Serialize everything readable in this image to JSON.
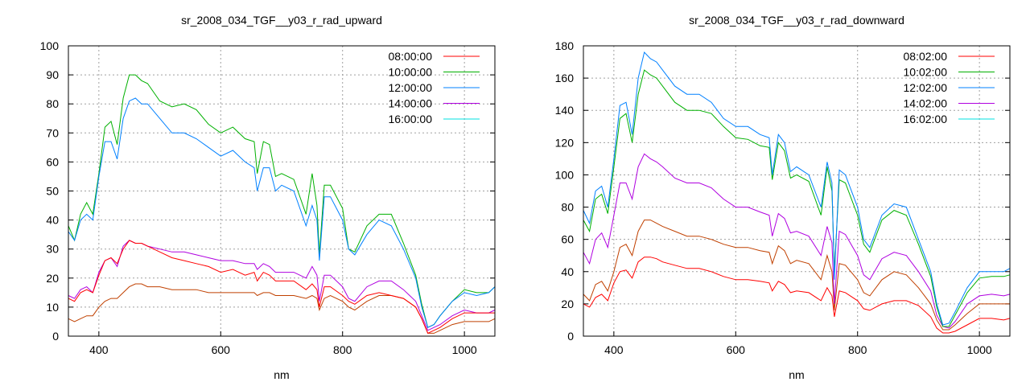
{
  "chart_data": [
    {
      "type": "line",
      "title": "sr_2008_034_TGF__y03_r_rad_upward",
      "xlabel": "nm",
      "ylabel": "",
      "xlim": [
        350,
        1050
      ],
      "ylim": [
        0,
        100
      ],
      "xticks": [
        400,
        600,
        800,
        1000
      ],
      "yticks": [
        0,
        10,
        20,
        30,
        40,
        50,
        60,
        70,
        80,
        90,
        100
      ],
      "grid": true,
      "legend_position": "top-right",
      "x": [
        350,
        360,
        370,
        380,
        390,
        400,
        410,
        420,
        430,
        440,
        450,
        460,
        470,
        480,
        500,
        520,
        540,
        560,
        580,
        600,
        620,
        640,
        655,
        660,
        670,
        680,
        690,
        700,
        720,
        740,
        750,
        758,
        762,
        770,
        780,
        800,
        810,
        820,
        840,
        860,
        880,
        900,
        920,
        930,
        940,
        950,
        960,
        980,
        1000,
        1020,
        1040,
        1050
      ],
      "series": [
        {
          "name": "08:00:00",
          "color": "#ff0000",
          "legend_color": "#ff0000",
          "values": [
            13,
            12,
            15,
            16,
            15,
            21,
            26,
            27,
            25,
            30,
            33,
            32,
            32,
            31,
            29,
            27,
            26,
            25,
            24,
            22,
            23,
            21,
            22,
            19,
            22,
            21,
            19,
            19,
            19,
            16,
            18,
            16,
            10,
            17,
            17,
            14,
            12,
            11,
            14,
            15,
            14,
            13,
            10,
            6,
            1,
            2,
            3,
            6,
            8,
            8,
            8,
            8
          ]
        },
        {
          "name": "10:00:00",
          "color": "#00b000",
          "legend_color": "#00b000",
          "values": [
            38,
            33,
            42,
            46,
            42,
            56,
            72,
            74,
            66,
            82,
            90,
            90,
            88,
            87,
            81,
            79,
            80,
            78,
            73,
            70,
            72,
            68,
            67,
            56,
            67,
            66,
            55,
            56,
            54,
            42,
            56,
            45,
            28,
            52,
            52,
            44,
            30,
            29,
            38,
            42,
            42,
            32,
            21,
            11,
            3,
            4,
            7,
            12,
            16,
            15,
            15,
            17
          ]
        },
        {
          "name": "12:00:00",
          "color": "#0080ff",
          "legend_color": "#0080ff",
          "values": [
            36,
            33,
            40,
            42,
            40,
            55,
            67,
            67,
            61,
            75,
            81,
            82,
            80,
            80,
            75,
            70,
            70,
            68,
            65,
            62,
            64,
            60,
            58,
            50,
            58,
            58,
            50,
            52,
            50,
            38,
            45,
            40,
            26,
            48,
            48,
            40,
            30,
            28,
            35,
            40,
            38,
            30,
            20,
            10,
            3,
            4,
            7,
            12,
            15,
            14,
            15,
            17
          ]
        },
        {
          "name": "14:00:00",
          "color": "#b000e0",
          "legend_color": "#b000e0",
          "values": [
            14,
            13,
            16,
            17,
            15,
            22,
            26,
            27,
            24,
            31,
            33,
            32,
            32,
            31,
            30,
            29,
            29,
            28,
            27,
            26,
            26,
            25,
            25,
            23,
            25,
            24,
            22,
            22,
            22,
            20,
            24,
            21,
            12,
            21,
            21,
            17,
            13,
            12,
            17,
            19,
            19,
            16,
            12,
            7,
            2,
            3,
            4,
            7,
            9,
            8,
            8,
            9
          ]
        },
        {
          "name": "16:00:00",
          "color": "#c04000",
          "legend_color": "#00e0e0",
          "values": [
            6,
            5,
            6,
            7,
            7,
            10,
            12,
            13,
            13,
            15,
            17,
            18,
            18,
            17,
            17,
            16,
            16,
            16,
            15,
            15,
            15,
            15,
            15,
            14,
            15,
            15,
            14,
            14,
            14,
            13,
            14,
            13,
            9,
            13,
            14,
            12,
            10,
            9,
            12,
            14,
            14,
            13,
            10,
            6,
            1,
            1,
            2,
            4,
            5,
            5,
            5,
            6
          ]
        }
      ]
    },
    {
      "type": "line",
      "title": "sr_2008_034_TGF__y03_r_rad_downward",
      "xlabel": "nm",
      "ylabel": "",
      "xlim": [
        350,
        1050
      ],
      "ylim": [
        0,
        180
      ],
      "xticks": [
        400,
        600,
        800,
        1000
      ],
      "yticks": [
        0,
        20,
        40,
        60,
        80,
        100,
        120,
        140,
        160,
        180
      ],
      "grid": true,
      "legend_position": "top-right",
      "x": [
        350,
        360,
        370,
        380,
        390,
        400,
        410,
        420,
        430,
        440,
        450,
        460,
        470,
        480,
        500,
        520,
        540,
        560,
        580,
        600,
        620,
        640,
        655,
        660,
        670,
        680,
        690,
        700,
        720,
        740,
        750,
        758,
        762,
        770,
        780,
        800,
        810,
        820,
        840,
        860,
        880,
        900,
        920,
        930,
        940,
        950,
        960,
        980,
        1000,
        1020,
        1040,
        1050
      ],
      "series": [
        {
          "name": "08:02:00",
          "color": "#ff0000",
          "legend_color": "#ff0000",
          "values": [
            20,
            18,
            24,
            26,
            22,
            33,
            40,
            41,
            36,
            46,
            49,
            49,
            48,
            46,
            44,
            42,
            42,
            40,
            37,
            35,
            35,
            34,
            33,
            28,
            34,
            32,
            27,
            28,
            27,
            22,
            30,
            25,
            12,
            28,
            27,
            22,
            17,
            16,
            20,
            22,
            22,
            19,
            12,
            5,
            2,
            2,
            3,
            7,
            11,
            11,
            10,
            11
          ]
        },
        {
          "name": "10:02:00",
          "color": "#00b000",
          "legend_color": "#00b000",
          "values": [
            72,
            65,
            85,
            88,
            76,
            105,
            135,
            138,
            120,
            150,
            165,
            162,
            160,
            155,
            145,
            140,
            140,
            138,
            130,
            123,
            122,
            118,
            117,
            97,
            120,
            115,
            98,
            100,
            96,
            75,
            105,
            90,
            40,
            97,
            95,
            75,
            57,
            52,
            72,
            78,
            75,
            57,
            37,
            18,
            6,
            6,
            13,
            27,
            36,
            37,
            37,
            38
          ]
        },
        {
          "name": "12:02:00",
          "color": "#0080ff",
          "legend_color": "#0080ff",
          "values": [
            78,
            70,
            90,
            93,
            80,
            110,
            143,
            145,
            125,
            160,
            176,
            172,
            170,
            165,
            155,
            150,
            150,
            145,
            135,
            130,
            130,
            125,
            123,
            100,
            125,
            120,
            102,
            105,
            100,
            80,
            108,
            95,
            35,
            103,
            100,
            80,
            60,
            55,
            75,
            82,
            80,
            60,
            40,
            20,
            7,
            8,
            15,
            30,
            40,
            40,
            40,
            42
          ]
        },
        {
          "name": "14:02:00",
          "color": "#b000e0",
          "legend_color": "#b000e0",
          "values": [
            52,
            45,
            60,
            64,
            55,
            75,
            95,
            95,
            85,
            105,
            113,
            110,
            108,
            105,
            98,
            95,
            95,
            92,
            85,
            80,
            80,
            77,
            75,
            62,
            76,
            73,
            64,
            65,
            62,
            50,
            68,
            58,
            20,
            65,
            63,
            50,
            38,
            35,
            48,
            52,
            50,
            40,
            28,
            13,
            6,
            5,
            9,
            20,
            25,
            26,
            25,
            26
          ]
        },
        {
          "name": "16:02:00",
          "color": "#c04000",
          "legend_color": "#00e0e0",
          "values": [
            26,
            22,
            32,
            34,
            28,
            40,
            55,
            57,
            50,
            65,
            72,
            72,
            70,
            68,
            65,
            62,
            62,
            60,
            57,
            55,
            55,
            53,
            52,
            45,
            56,
            53,
            45,
            47,
            45,
            35,
            50,
            40,
            16,
            45,
            44,
            35,
            27,
            25,
            35,
            40,
            38,
            30,
            20,
            10,
            4,
            4,
            7,
            14,
            20,
            20,
            20,
            20
          ]
        }
      ]
    }
  ]
}
